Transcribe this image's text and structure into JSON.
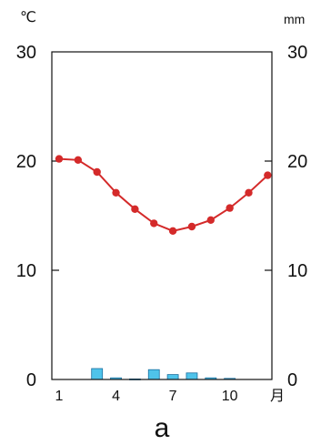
{
  "chart_data": {
    "type": "bar+line",
    "categories": [
      "1",
      "2",
      "3",
      "4",
      "5",
      "6",
      "7",
      "8",
      "9",
      "10",
      "11",
      "12"
    ],
    "x_tick_labels": [
      "1",
      "4",
      "7",
      "10",
      "月"
    ],
    "left_axis": {
      "unit": "℃",
      "ticks": [
        "0",
        "10",
        "20",
        "30"
      ],
      "ylim": [
        0,
        30
      ]
    },
    "right_axis": {
      "unit": "mm",
      "ticks": [
        "0",
        "10",
        "20",
        "30"
      ],
      "ylim": [
        0,
        30
      ]
    },
    "series": [
      {
        "kind": "line",
        "axis": "left",
        "values": [
          20.2,
          20.1,
          19.0,
          17.1,
          15.6,
          14.3,
          13.6,
          14.0,
          14.6,
          15.7,
          17.1,
          18.7
        ]
      },
      {
        "kind": "bar",
        "axis": "right",
        "values": [
          0,
          0,
          1.0,
          0.15,
          0.05,
          0.9,
          0.45,
          0.6,
          0.15,
          0.1,
          0,
          0
        ]
      }
    ],
    "grid": false,
    "caption": "a",
    "colors": {
      "line": "#d42a2a",
      "bar": "#4fc3ea",
      "axis": "#111111"
    }
  }
}
